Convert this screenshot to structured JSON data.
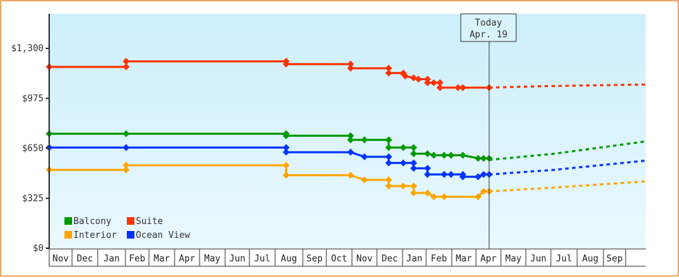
{
  "chart_data": {
    "type": "line",
    "title": "",
    "xlabel": "",
    "ylabel": "",
    "ylim": [
      0,
      1300
    ],
    "y_ticks": [
      {
        "value": 0,
        "label": "$0"
      },
      {
        "value": 325,
        "label": "$325"
      },
      {
        "value": 650,
        "label": "$650"
      },
      {
        "value": 975,
        "label": "$975"
      },
      {
        "value": 1300,
        "label": "$1,300"
      }
    ],
    "x_month_labels": [
      "Nov",
      "Dec",
      "Jan",
      "Feb",
      "Mar",
      "Apr",
      "May",
      "Jun",
      "Jul",
      "Aug",
      "Sep",
      "Oct",
      "Nov",
      "Dec",
      "Jan",
      "Feb",
      "Mar",
      "Apr",
      "May",
      "Jun",
      "Jul",
      "Aug",
      "Sep"
    ],
    "today_marker": {
      "line1": "Today",
      "line2": "Apr. 19"
    },
    "legend": [
      {
        "name": "Balcony",
        "color": "#009900"
      },
      {
        "name": "Suite",
        "color": "#ff3300"
      },
      {
        "name": "Interior",
        "color": "#ffa500"
      },
      {
        "name": "Ocean View",
        "color": "#0033ff"
      }
    ],
    "series": [
      {
        "name": "Suite",
        "color": "#ff3300",
        "history": [
          [
            71,
            1180
          ],
          [
            182,
            1180
          ],
          [
            182,
            1216
          ],
          [
            413,
            1216
          ],
          [
            413,
            1198
          ],
          [
            506,
            1198
          ],
          [
            506,
            1171
          ],
          [
            561,
            1171
          ],
          [
            561,
            1140
          ],
          [
            582,
            1140
          ],
          [
            582,
            1135
          ],
          [
            585,
            1120
          ],
          [
            597,
            1108
          ],
          [
            604,
            1100
          ],
          [
            617,
            1100
          ],
          [
            617,
            1077
          ],
          [
            626,
            1077
          ],
          [
            635,
            1077
          ],
          [
            635,
            1045
          ],
          [
            661,
            1045
          ],
          [
            668,
            1045
          ],
          [
            706,
            1045
          ]
        ],
        "markers": [
          71,
          182,
          413,
          506,
          561,
          582,
          585,
          597,
          604,
          617,
          626,
          635,
          661,
          668,
          706
        ],
        "projection": [
          [
            706,
            1045
          ],
          [
            790,
            1055
          ],
          [
            932,
            1065
          ]
        ]
      },
      {
        "name": "Balcony",
        "color": "#009900",
        "history": [
          [
            71,
            745
          ],
          [
            182,
            745
          ],
          [
            413,
            745
          ],
          [
            413,
            732
          ],
          [
            506,
            732
          ],
          [
            506,
            705
          ],
          [
            526,
            705
          ],
          [
            561,
            705
          ],
          [
            561,
            655
          ],
          [
            582,
            655
          ],
          [
            597,
            655
          ],
          [
            597,
            615
          ],
          [
            617,
            615
          ],
          [
            626,
            605
          ],
          [
            641,
            605
          ],
          [
            651,
            605
          ],
          [
            668,
            605
          ],
          [
            690,
            585
          ],
          [
            698,
            585
          ],
          [
            706,
            585
          ]
        ],
        "markers": [
          71,
          182,
          413,
          506,
          526,
          561,
          582,
          597,
          604,
          617,
          626,
          641,
          651,
          668,
          690,
          698,
          706
        ],
        "projection": [
          [
            706,
            575
          ],
          [
            800,
            615
          ],
          [
            932,
            695
          ]
        ]
      },
      {
        "name": "Ocean View",
        "color": "#0033ff",
        "history": [
          [
            71,
            655
          ],
          [
            182,
            655
          ],
          [
            413,
            655
          ],
          [
            413,
            625
          ],
          [
            506,
            625
          ],
          [
            526,
            595
          ],
          [
            561,
            595
          ],
          [
            561,
            555
          ],
          [
            582,
            555
          ],
          [
            597,
            555
          ],
          [
            597,
            520
          ],
          [
            617,
            520
          ],
          [
            617,
            480
          ],
          [
            641,
            480
          ],
          [
            651,
            480
          ],
          [
            668,
            480
          ],
          [
            668,
            465
          ],
          [
            690,
            465
          ],
          [
            698,
            480
          ],
          [
            706,
            480
          ]
        ],
        "markers": [
          71,
          182,
          413,
          506,
          526,
          561,
          582,
          597,
          617,
          641,
          651,
          668,
          690,
          698,
          706
        ],
        "projection": [
          [
            706,
            480
          ],
          [
            800,
            510
          ],
          [
            932,
            570
          ]
        ]
      },
      {
        "name": "Interior",
        "color": "#ffa500",
        "history": [
          [
            71,
            510
          ],
          [
            182,
            510
          ],
          [
            182,
            540
          ],
          [
            413,
            540
          ],
          [
            413,
            475
          ],
          [
            506,
            475
          ],
          [
            526,
            445
          ],
          [
            561,
            445
          ],
          [
            561,
            405
          ],
          [
            582,
            405
          ],
          [
            597,
            405
          ],
          [
            597,
            360
          ],
          [
            617,
            360
          ],
          [
            626,
            335
          ],
          [
            641,
            335
          ],
          [
            651,
            335
          ],
          [
            690,
            335
          ],
          [
            698,
            370
          ],
          [
            706,
            370
          ]
        ],
        "markers": [
          71,
          182,
          413,
          506,
          526,
          561,
          582,
          597,
          617,
          626,
          635,
          641,
          690,
          698,
          706
        ],
        "projection": [
          [
            706,
            370
          ],
          [
            800,
            395
          ],
          [
            932,
            435
          ]
        ]
      }
    ]
  }
}
